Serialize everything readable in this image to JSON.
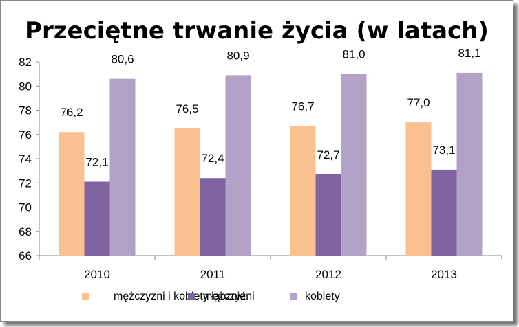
{
  "chart_data": {
    "type": "bar",
    "title": "Przeciętne trwanie życia (w latach)",
    "xlabel": "",
    "ylabel": "",
    "ylim": [
      66,
      82
    ],
    "yticks": [
      66,
      68,
      70,
      72,
      74,
      76,
      78,
      80,
      82
    ],
    "grid": false,
    "legend_position": "bottom",
    "categories": [
      "2010",
      "2011",
      "2012",
      "2013"
    ],
    "series": [
      {
        "name": "mężczyzni i kobiety łącznie",
        "color": "#FAC090",
        "values": [
          76.2,
          76.5,
          76.7,
          77.0
        ],
        "labels": [
          "76,2",
          "76,5",
          "76,7",
          "77,0"
        ]
      },
      {
        "name": "mężczyźni",
        "color": "#8064A2",
        "values": [
          72.1,
          72.4,
          72.7,
          73.1
        ],
        "labels": [
          "72,1",
          "72,4",
          "72,7",
          "73,1"
        ]
      },
      {
        "name": "kobiety",
        "color": "#B3A2C7",
        "values": [
          80.6,
          80.9,
          81.0,
          81.1
        ],
        "labels": [
          "80,6",
          "80,9",
          "81,0",
          "81,1"
        ]
      }
    ]
  }
}
